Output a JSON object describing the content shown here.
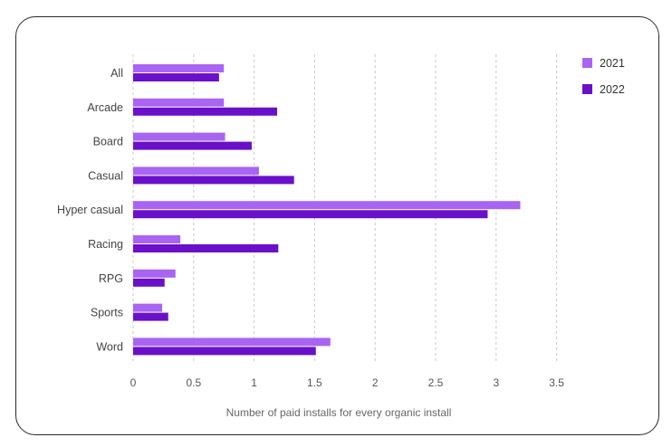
{
  "chart_data": {
    "type": "bar",
    "orientation": "horizontal",
    "categories": [
      "All",
      "Arcade",
      "Board",
      "Casual",
      "Hyper casual",
      "Racing",
      "RPG",
      "Sports",
      "Word"
    ],
    "series": [
      {
        "name": "2021",
        "color": "#a965f2",
        "values": [
          0.75,
          0.75,
          0.76,
          1.04,
          3.2,
          0.39,
          0.35,
          0.24,
          1.63
        ]
      },
      {
        "name": "2022",
        "color": "#6a10c9",
        "values": [
          0.71,
          1.19,
          0.98,
          1.33,
          2.93,
          1.2,
          0.26,
          0.29,
          1.51
        ]
      }
    ],
    "xlabel": "Number of paid installs for every organic install",
    "xlim": [
      0,
      3.5
    ],
    "xticks": [
      "0",
      "0.5",
      "1",
      "1.5",
      "2",
      "2.5",
      "3",
      "3.5"
    ],
    "grid": "vertical dashed",
    "legend_position": "top-right"
  }
}
